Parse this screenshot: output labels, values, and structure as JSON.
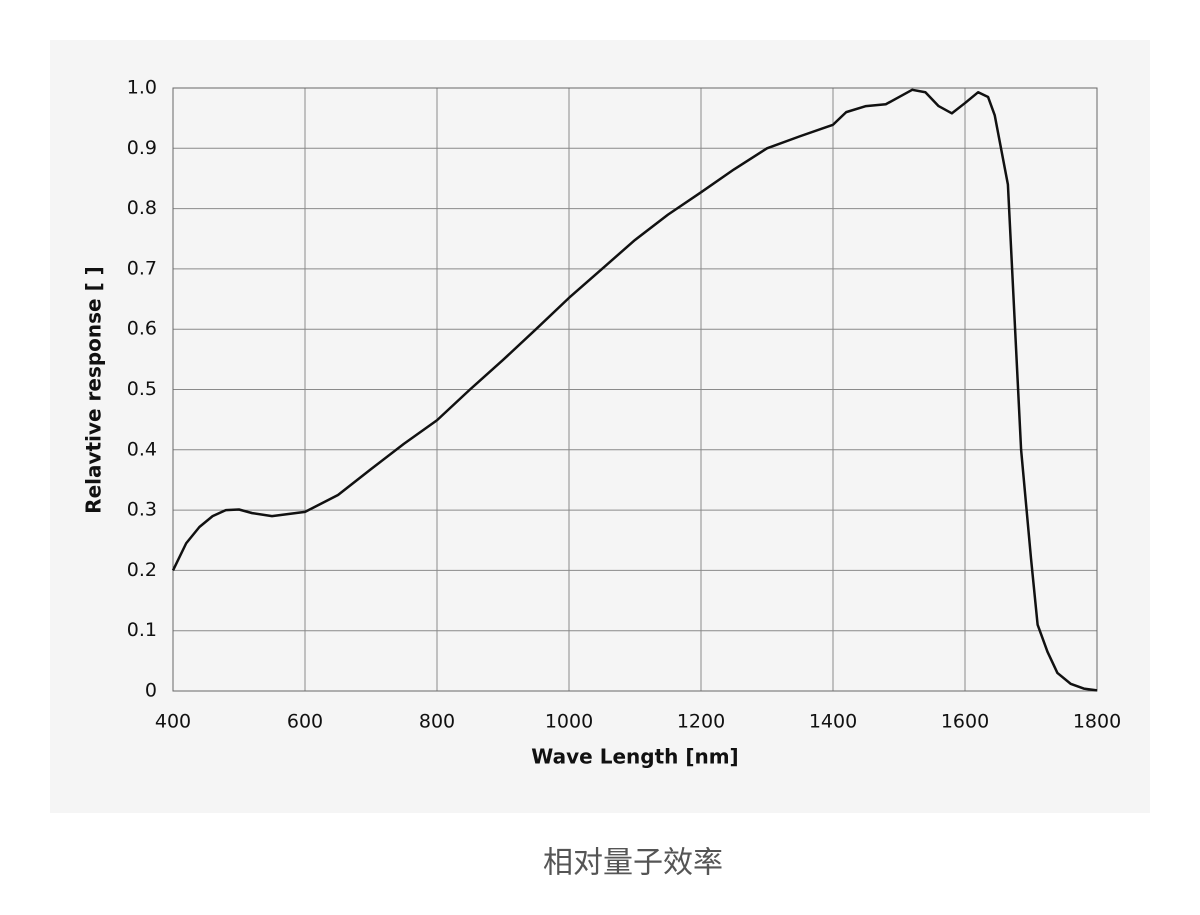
{
  "chart_data": {
    "type": "line",
    "xlabel": "Wave Length [nm]",
    "ylabel": "Relavtive response [ ]",
    "caption": "相对量子效率",
    "x": [
      400,
      420,
      440,
      460,
      480,
      500,
      520,
      550,
      600,
      650,
      700,
      750,
      800,
      850,
      900,
      950,
      1000,
      1050,
      1100,
      1150,
      1200,
      1250,
      1300,
      1350,
      1400,
      1420,
      1450,
      1480,
      1500,
      1520,
      1540,
      1560,
      1580,
      1600,
      1620,
      1635,
      1645,
      1665,
      1675,
      1685,
      1700,
      1710,
      1725,
      1740,
      1760,
      1780,
      1800
    ],
    "series": [
      {
        "name": "Relative response",
        "color": "#111111",
        "values": [
          0.2,
          0.245,
          0.272,
          0.29,
          0.3,
          0.301,
          0.295,
          0.29,
          0.297,
          0.325,
          0.368,
          0.41,
          0.449,
          0.5,
          0.549,
          0.6,
          0.652,
          0.7,
          0.748,
          0.79,
          0.827,
          0.865,
          0.9,
          0.92,
          0.939,
          0.96,
          0.97,
          0.973,
          0.985,
          0.997,
          0.993,
          0.97,
          0.958,
          0.975,
          0.993,
          0.985,
          0.955,
          0.84,
          0.62,
          0.4,
          0.22,
          0.11,
          0.065,
          0.03,
          0.012,
          0.004,
          0.001
        ]
      }
    ],
    "xlim": [
      400,
      1800
    ],
    "xticks": [
      400,
      600,
      800,
      1000,
      1200,
      1400,
      1600,
      1800
    ],
    "ylim": [
      0,
      1
    ],
    "yticks": [
      0,
      0.1,
      0.2,
      0.3,
      0.4,
      0.5,
      0.6,
      0.7,
      0.8,
      0.9,
      {
        "value": 1,
        "label": "1.0"
      }
    ],
    "grid": true
  }
}
